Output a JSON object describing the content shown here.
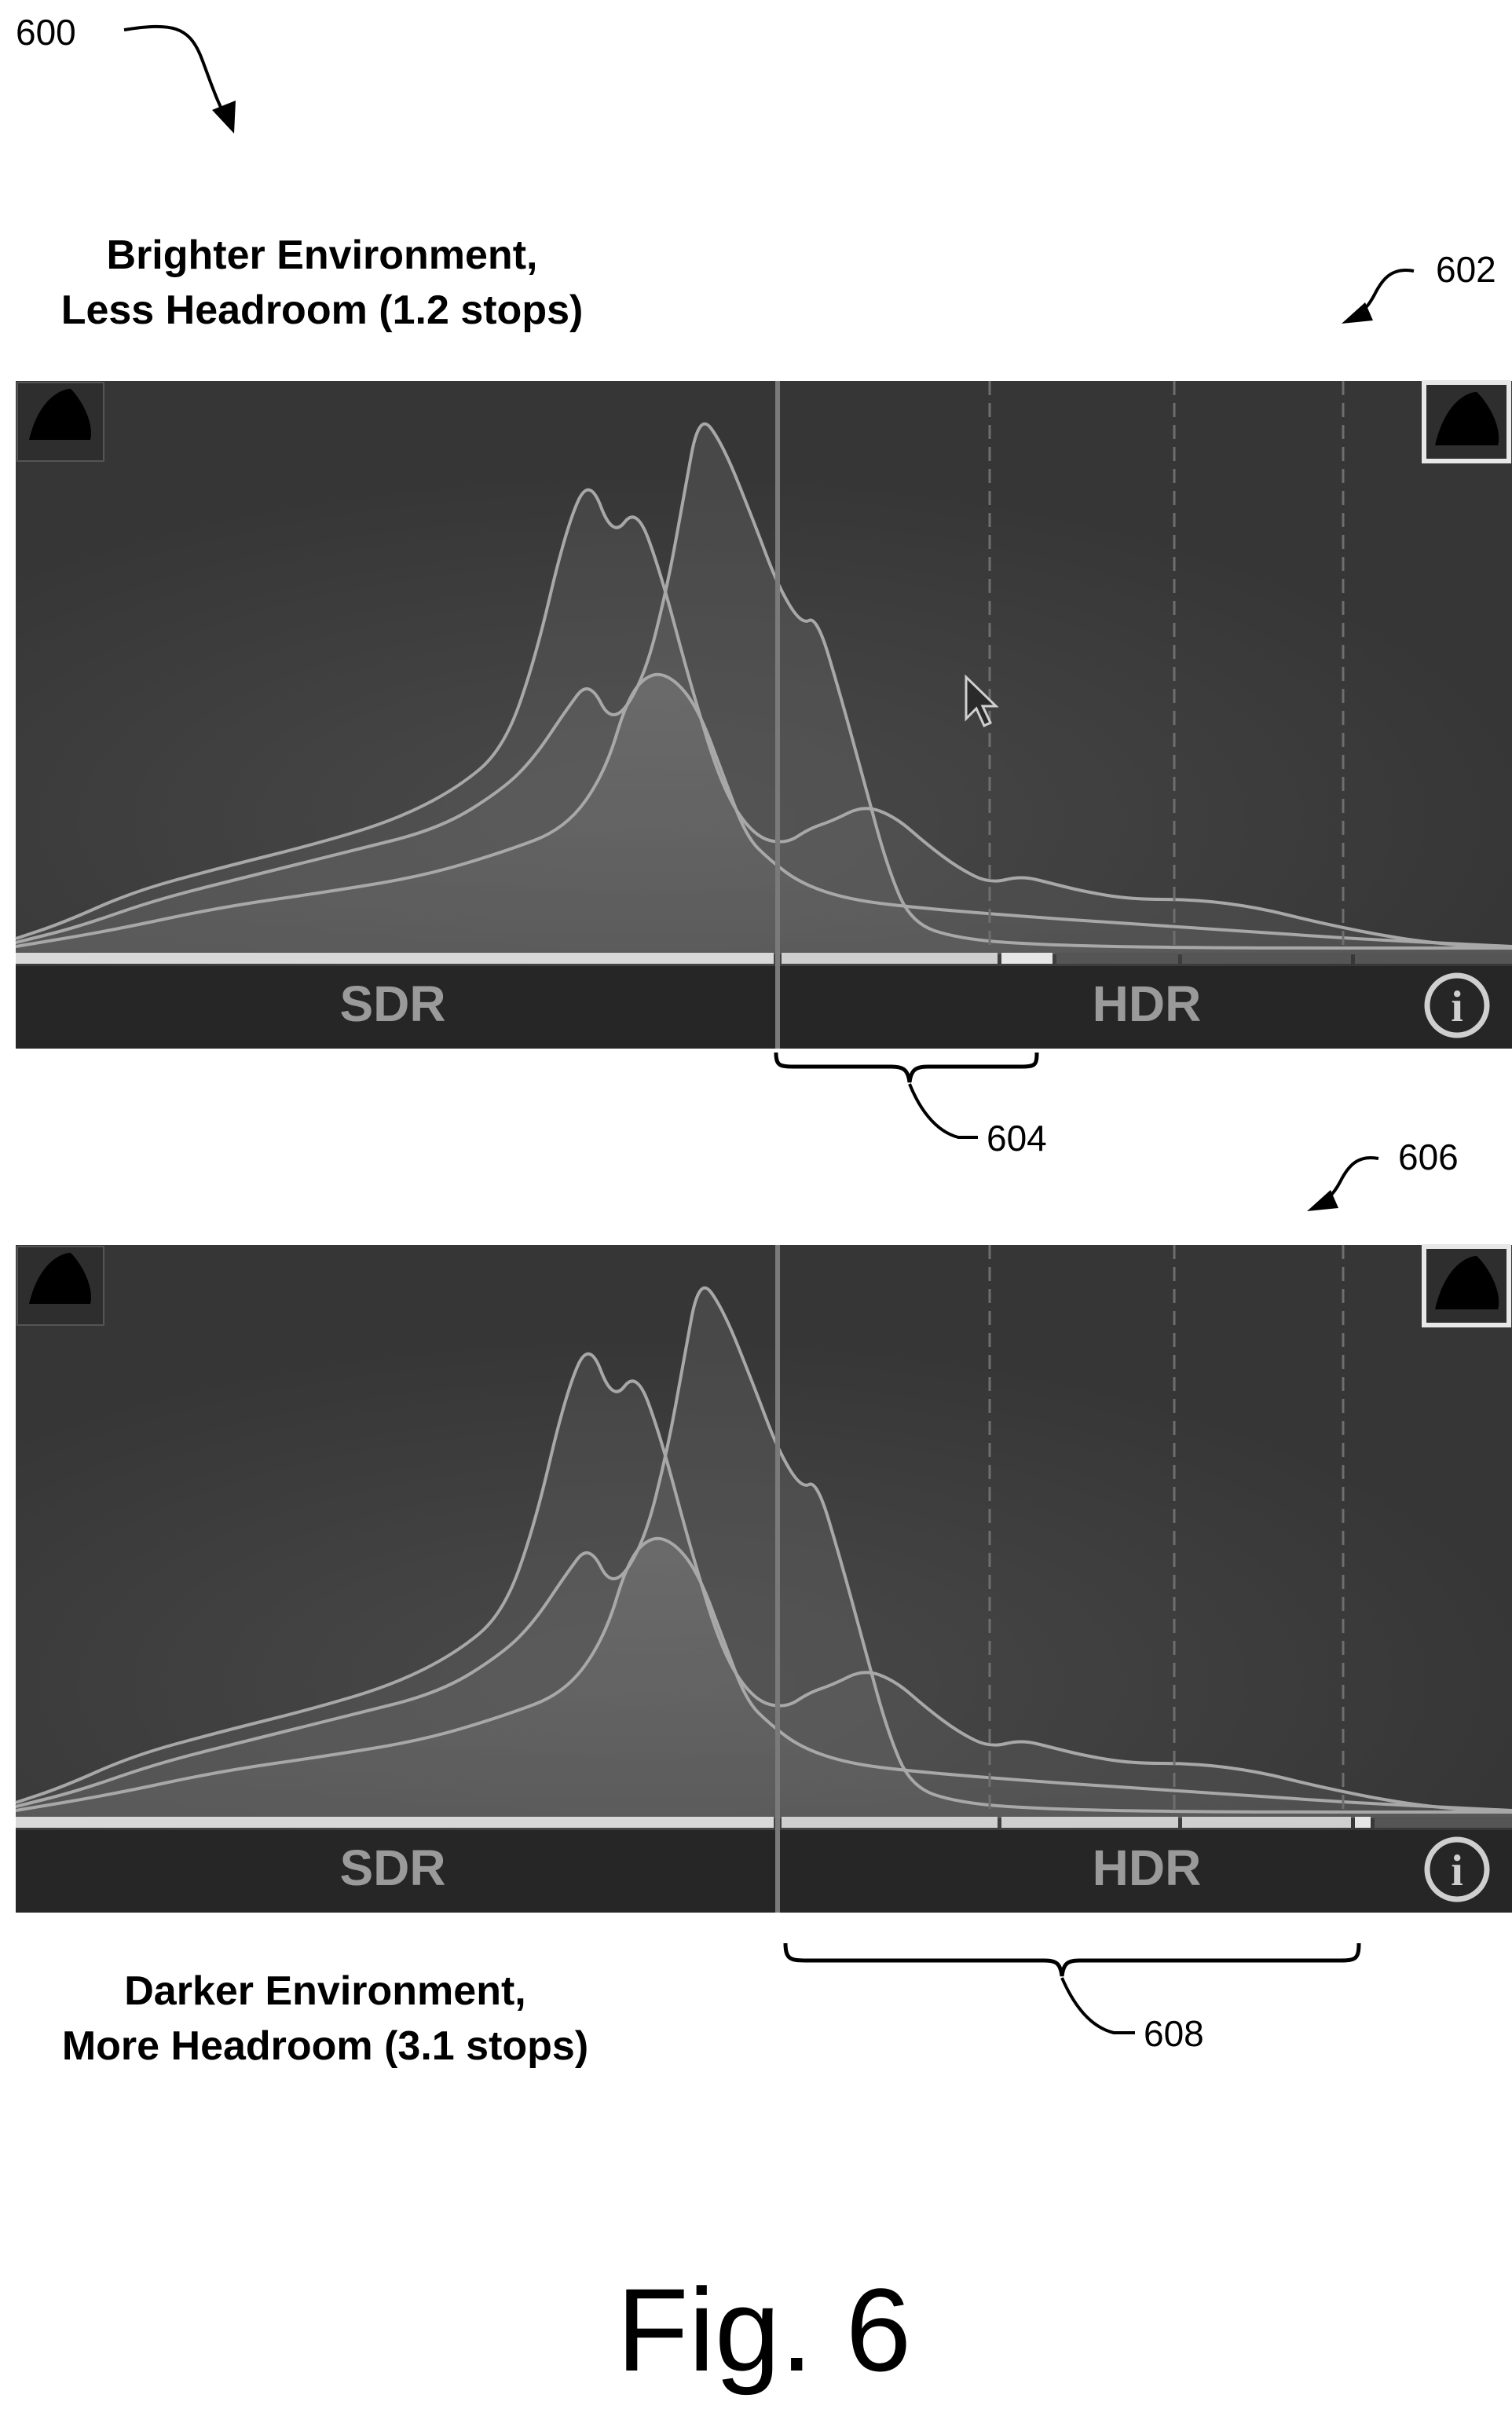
{
  "figure": {
    "number_label": "Fig. 6",
    "ref_overall": "600",
    "ref_top_panel": "602",
    "ref_top_bracket": "604",
    "ref_bottom_panel": "606",
    "ref_bottom_bracket": "608"
  },
  "top_caption": {
    "line1": "Brighter Environment,",
    "line2": "Less Headroom (1.2 stops)"
  },
  "bottom_caption": {
    "line1": "Darker Environment,",
    "line2": "More Headroom (3.1 stops)"
  },
  "panel_labels": {
    "sdr": "SDR",
    "hdr": "HDR",
    "info": "i"
  },
  "colors": {
    "panel_bg": "#3c3c3c",
    "panel_bar": "#262626",
    "curve_line": "#a8a8a8",
    "divider": "#7a7a7a"
  }
}
